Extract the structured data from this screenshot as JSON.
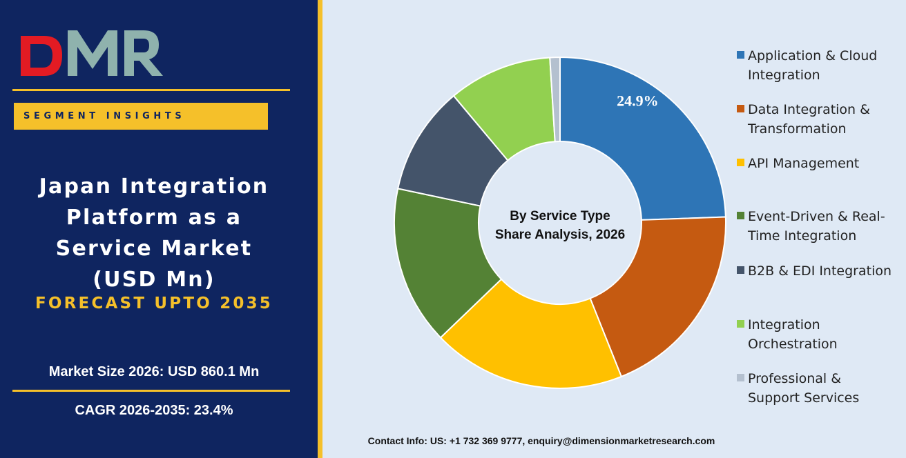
{
  "brand": {
    "logo_text": "DMR",
    "banner_label": "SEGMENT INSIGHTS"
  },
  "report": {
    "title_lines": [
      "Japan Integration",
      "Platform as a",
      "Service Market",
      "(USD Mn)"
    ],
    "forecast": "FORECAST UPTO 2035",
    "market_size": "Market Size 2026: USD 860.1 Mn",
    "cagr": "CAGR 2026-2035: 23.4%"
  },
  "colors": {
    "navy": "#0f2560",
    "gold": "#f5c02a",
    "panel_bg": "#dfe9f5"
  },
  "chart_data": {
    "type": "pie",
    "variant": "donut",
    "center_label": [
      "By Service Type",
      "Share Analysis, 2026"
    ],
    "categories": [
      "Application & Cloud Integration",
      "Data Integration & Transformation",
      "API Management",
      "Event-Driven & Real-Time Integration",
      "B2B & EDI Integration",
      "Integration Orchestration",
      "Professional & Support Services"
    ],
    "values": [
      24.9,
      19.9,
      19.2,
      15.8,
      10.8,
      10.3,
      1.0
    ],
    "colors": [
      "#2e75b6",
      "#c55a11",
      "#ffc000",
      "#548235",
      "#44546a",
      "#92d050",
      "#b4c0cf"
    ],
    "data_labels": [
      "24.9%",
      "",
      "",
      "",
      "",
      "",
      ""
    ],
    "legend": {
      "placement": "right",
      "entries": [
        [
          "Application & Cloud",
          "Integration"
        ],
        [
          "Data Integration &",
          "Transformation"
        ],
        [
          "API Management"
        ],
        [
          "Event-Driven & Real-",
          "Time Integration"
        ],
        [
          "B2B & EDI Integration"
        ],
        [
          "Integration",
          "Orchestration"
        ],
        [
          "Professional &",
          "Support Services"
        ]
      ]
    }
  },
  "footer": {
    "contact": "Contact Info: US: +1 732 369 9777, enquiry@dimensionmarketresearch.com"
  }
}
